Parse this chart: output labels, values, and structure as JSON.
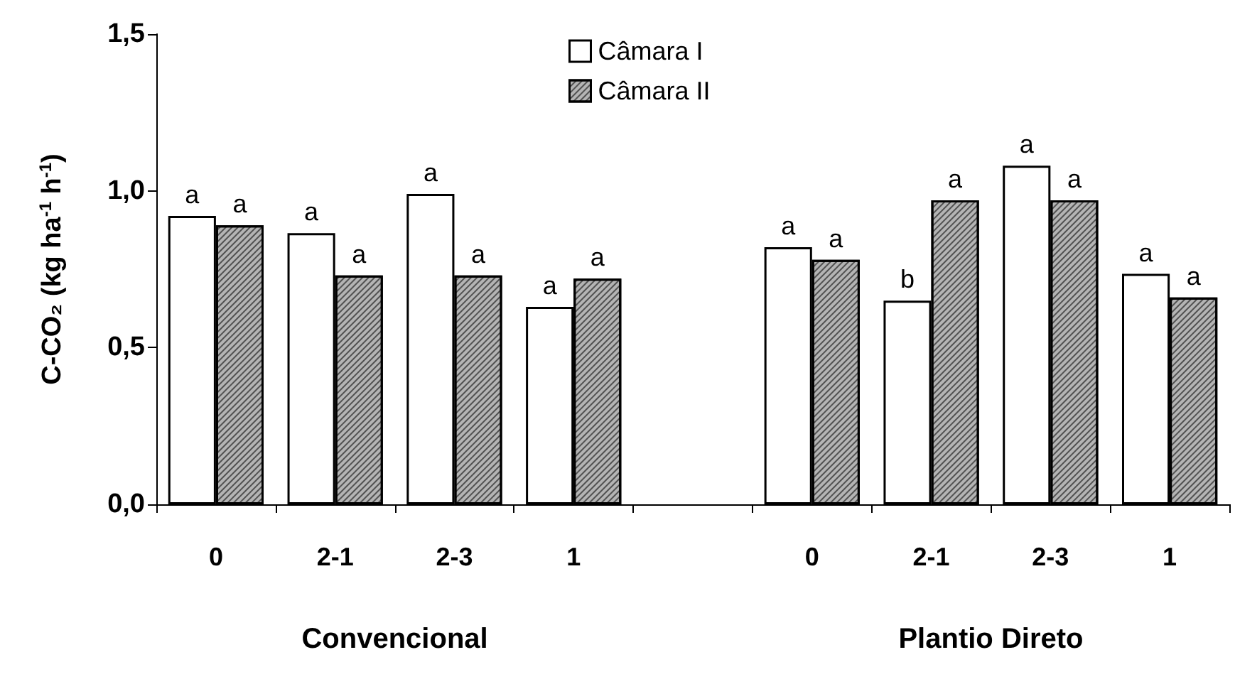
{
  "chart_data": {
    "type": "bar",
    "categories": [
      "0",
      "2-1",
      "2-3",
      "1",
      null,
      "0",
      "2-1",
      "2-3",
      "1"
    ],
    "ylabel": "C-CO₂ (kg ha$^{-1}$ h$^{-1}$)",
    "annotations": [
      "Convencional",
      "Plantio Direto"
    ],
    "series": [
      {
        "name": "Câmara I",
        "color": "#ffffff",
        "values": [
          0.92,
          0.865,
          0.99,
          0.63,
          null,
          0.82,
          0.65,
          1.08,
          0.735
        ],
        "value_labels": [
          "a",
          "a",
          "a",
          "a",
          null,
          "a",
          "b",
          "a",
          "a"
        ]
      },
      {
        "name": "Câmara II",
        "color": "#b4b4b4",
        "values": [
          0.89,
          0.73,
          0.73,
          0.72,
          null,
          0.78,
          0.97,
          0.97,
          0.66
        ],
        "value_labels": [
          "a",
          "a",
          "a",
          "a",
          null,
          "a",
          "a",
          "a",
          "a"
        ]
      }
    ],
    "ylim": [
      0,
      1.5
    ],
    "yticks": [
      {
        "value": 0,
        "label": "0,0"
      },
      {
        "value": 0.5,
        "label": "0,5"
      },
      {
        "value": 1,
        "label": "1,0"
      },
      {
        "value": 1.5,
        "label": "1,5"
      }
    ],
    "grid": false,
    "legend": "top"
  }
}
